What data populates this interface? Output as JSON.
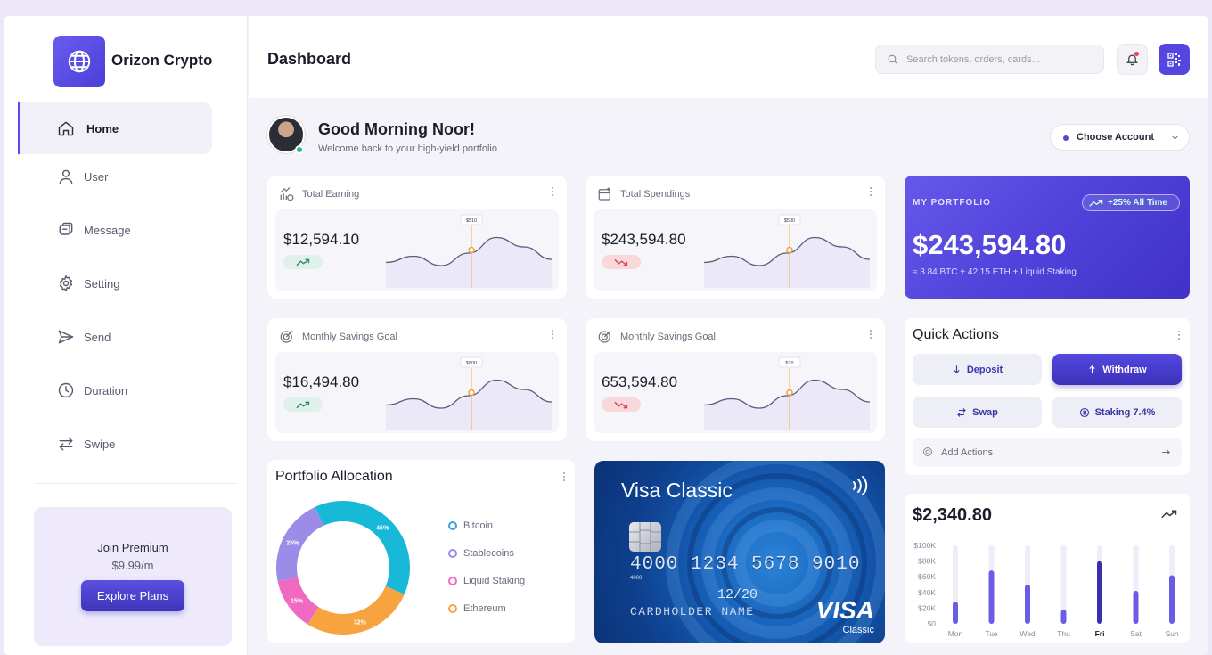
{
  "app": {
    "brand": "Orizon Crypto"
  },
  "sidebar": {
    "items": [
      {
        "label": "Home",
        "icon": "home-icon",
        "active": true
      },
      {
        "label": "User",
        "icon": "user-icon"
      },
      {
        "label": "Message",
        "icon": "message-icon"
      },
      {
        "label": "Setting",
        "icon": "gear-icon"
      },
      {
        "label": "Send",
        "icon": "send-icon"
      },
      {
        "label": "Duration",
        "icon": "clock-icon"
      },
      {
        "label": "Swipe",
        "icon": "swap-arrows-icon"
      }
    ],
    "premium": {
      "title": "Join Premium",
      "price": "$9.99/m",
      "button": "Explore Plans"
    }
  },
  "header": {
    "title": "Dashboard",
    "search_placeholder": "Search tokens, orders, cards..."
  },
  "greeting": {
    "title": "Good Morning Noor!",
    "subtitle": "Welcome back to your high-yield portfolio",
    "account_select": "Choose Account"
  },
  "stats": [
    {
      "label": "Total Earning",
      "value": "$12,594.10",
      "trend": "up",
      "tooltip": "$510",
      "spark": [
        0.35,
        0.45,
        0.3,
        0.5,
        0.75,
        0.6,
        0.4
      ]
    },
    {
      "label": "Total Spendings",
      "value": "$243,594.80",
      "trend": "down",
      "tooltip": "$500",
      "spark": [
        0.35,
        0.45,
        0.3,
        0.5,
        0.75,
        0.6,
        0.4
      ]
    },
    {
      "label": "Monthly Savings Goal",
      "value": "$16,494.80",
      "trend": "up",
      "tooltip": "$800",
      "spark": [
        0.35,
        0.45,
        0.3,
        0.5,
        0.75,
        0.6,
        0.4
      ]
    },
    {
      "label": "Monthly Savings Goal",
      "value": "653,594.80",
      "trend": "down",
      "tooltip": "$10",
      "spark": [
        0.35,
        0.45,
        0.3,
        0.5,
        0.75,
        0.6,
        0.4
      ]
    }
  ],
  "portfolio": {
    "label": "MY PORTFOLIO",
    "badge": "+25% All Time",
    "value": "$243,594.80",
    "subtitle": "≈ 3.84 BTC + 42.15 ETH + Liquid Staking"
  },
  "quick_actions": {
    "title": "Quick Actions",
    "deposit": "Deposit",
    "withdraw": "Withdraw",
    "swap": "Swap",
    "staking": "Staking 7.4%",
    "add": "Add Actions"
  },
  "allocation": {
    "title": "Portfolio Allocation",
    "slices": [
      {
        "name": "Bitcoin",
        "value": 32,
        "label": "32%",
        "color": "#f7a440"
      },
      {
        "name": "Stablecoins",
        "value": 15,
        "label": "15%",
        "color": "#f06ac2"
      },
      {
        "name": "Liquid Staking",
        "value": 25,
        "label": "25%",
        "color": "#9b8ce8"
      },
      {
        "name": "Ethereum",
        "value": 45,
        "label": "45%",
        "color": "#18b9d8"
      }
    ],
    "legend": [
      {
        "name": "Bitcoin",
        "color": "#3aa0e8"
      },
      {
        "name": "Stablecoins",
        "color": "#9b8ce8"
      },
      {
        "name": "Liquid Staking",
        "color": "#f06ac2"
      },
      {
        "name": "Ethereum",
        "color": "#f7a440"
      }
    ]
  },
  "visa": {
    "title": "Visa Classic",
    "number": "4000 1234 5678 9010",
    "small": "4000",
    "expiry": "12/20",
    "holder": "CARDHOLDER NAME",
    "logo": "VISA",
    "tier": "Classic"
  },
  "chart_data": {
    "type": "bar",
    "title": "$2,340.80",
    "categories": [
      "Mon",
      "Tue",
      "Wed",
      "Thu",
      "Fri",
      "Sat",
      "Sun"
    ],
    "values": [
      28,
      68,
      50,
      18,
      80,
      42,
      62
    ],
    "ylim": [
      0,
      100
    ],
    "yticks": [
      "$0",
      "$20K",
      "$40K",
      "$60K",
      "$80K",
      "$100K"
    ],
    "highlight": "Fri"
  }
}
